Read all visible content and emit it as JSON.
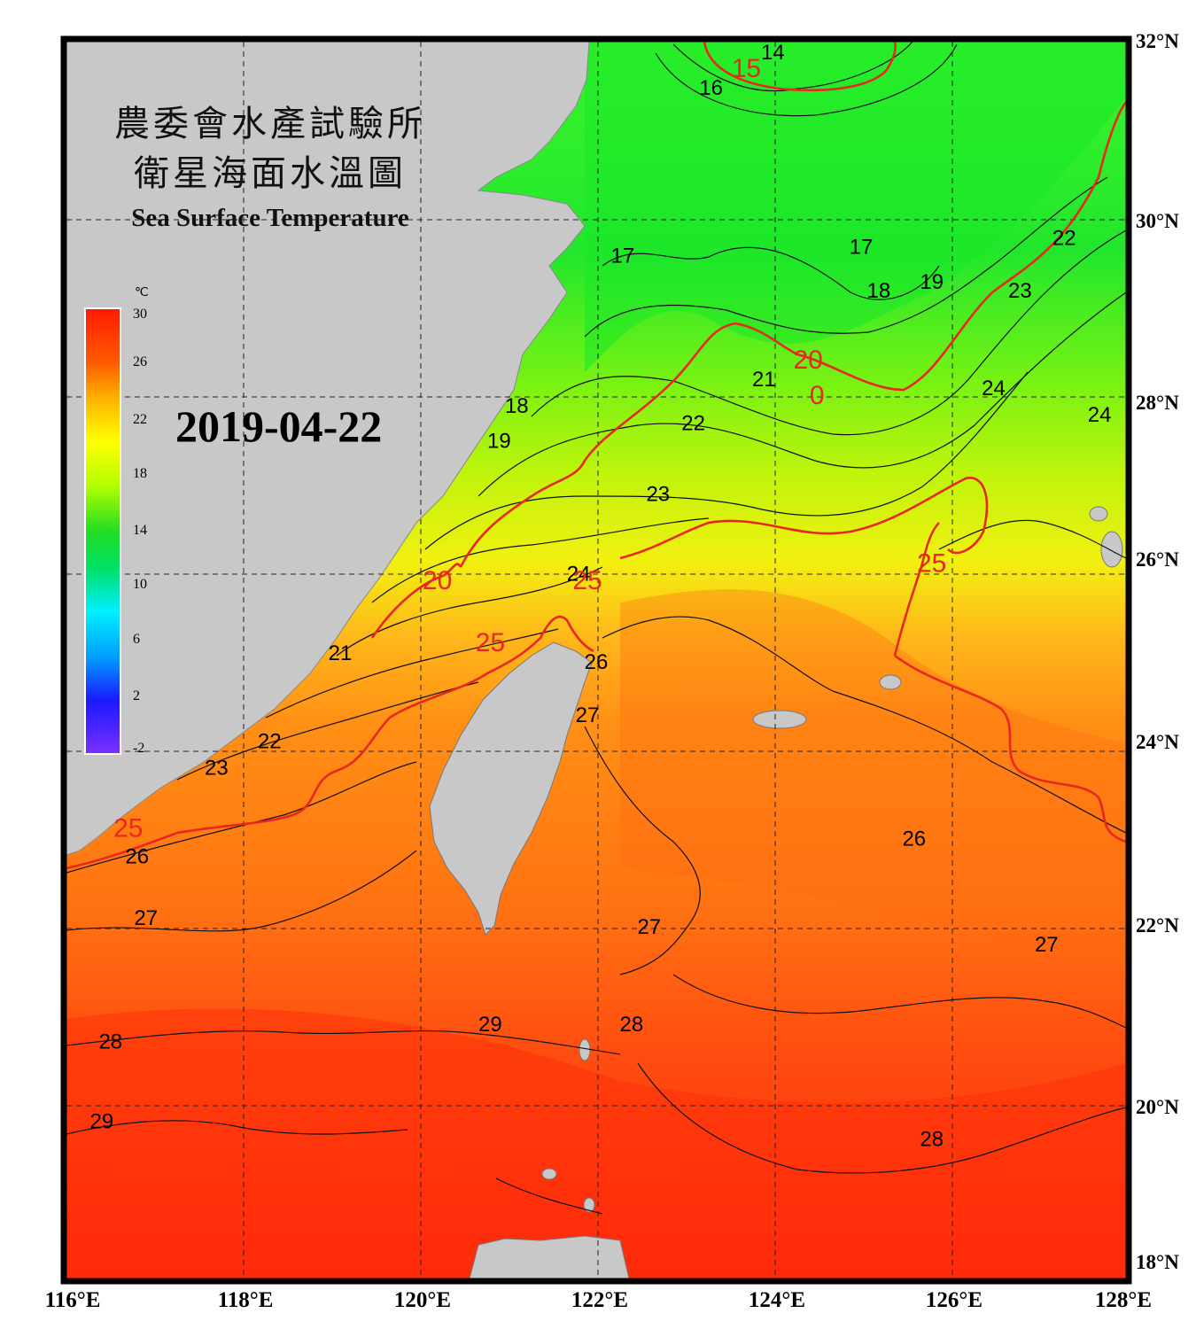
{
  "title": {
    "line1": "農委會水產試驗所",
    "line2": "衛星海面水溫圖",
    "english": "Sea Surface Temperature"
  },
  "date": "2019-04-22",
  "colorbar": {
    "unit": "℃",
    "ticks": [
      "30",
      "26",
      "22",
      "18",
      "14",
      "10",
      "6",
      "2",
      "-2"
    ],
    "range": [
      -2,
      30
    ],
    "colors": [
      "#7b2fff",
      "#1a1aff",
      "#00a0ff",
      "#00f0ff",
      "#00e060",
      "#22dd22",
      "#b0ff00",
      "#ffff00",
      "#ffb000",
      "#ff5a00",
      "#ff1a00"
    ]
  },
  "axes": {
    "lon_labels": [
      "116°E",
      "118°E",
      "120°E",
      "122°E",
      "124°E",
      "126°E",
      "128°E"
    ],
    "lat_labels": [
      "32°N",
      "30°N",
      "28°N",
      "26°N",
      "24°N",
      "22°N",
      "20°N",
      "18°N"
    ],
    "lon_range": [
      116,
      128
    ],
    "lat_range": [
      18,
      32
    ]
  },
  "contour_labels": [
    {
      "text": "14",
      "lon": 124.0,
      "lat": 31.8,
      "color": "#000000"
    },
    {
      "text": "15",
      "lon": 123.7,
      "lat": 31.6,
      "color": "#e8281e"
    },
    {
      "text": "16",
      "lon": 123.3,
      "lat": 31.4,
      "color": "#000000"
    },
    {
      "text": "17",
      "lon": 122.3,
      "lat": 29.5,
      "color": "#000000"
    },
    {
      "text": "17",
      "lon": 125.0,
      "lat": 29.6,
      "color": "#000000"
    },
    {
      "text": "18",
      "lon": 125.2,
      "lat": 29.1,
      "color": "#000000"
    },
    {
      "text": "18",
      "lon": 121.1,
      "lat": 27.8,
      "color": "#000000"
    },
    {
      "text": "19",
      "lon": 125.8,
      "lat": 29.2,
      "color": "#000000"
    },
    {
      "text": "19",
      "lon": 120.9,
      "lat": 27.4,
      "color": "#000000"
    },
    {
      "text": "20",
      "lon": 124.4,
      "lat": 28.3,
      "color": "#e8281e"
    },
    {
      "text": "0",
      "lon": 124.5,
      "lat": 27.9,
      "color": "#e8281e"
    },
    {
      "text": "20",
      "lon": 120.2,
      "lat": 25.8,
      "color": "#e8281e"
    },
    {
      "text": "21",
      "lon": 123.9,
      "lat": 28.1,
      "color": "#000000"
    },
    {
      "text": "21",
      "lon": 119.1,
      "lat": 25.0,
      "color": "#000000"
    },
    {
      "text": "22",
      "lon": 123.1,
      "lat": 27.6,
      "color": "#000000"
    },
    {
      "text": "22",
      "lon": 127.3,
      "lat": 29.7,
      "color": "#000000"
    },
    {
      "text": "22",
      "lon": 118.3,
      "lat": 24.0,
      "color": "#000000"
    },
    {
      "text": "23",
      "lon": 126.8,
      "lat": 29.1,
      "color": "#000000"
    },
    {
      "text": "23",
      "lon": 122.7,
      "lat": 26.8,
      "color": "#000000"
    },
    {
      "text": "23",
      "lon": 117.7,
      "lat": 23.7,
      "color": "#000000"
    },
    {
      "text": "24",
      "lon": 126.5,
      "lat": 28.0,
      "color": "#000000"
    },
    {
      "text": "24",
      "lon": 127.7,
      "lat": 27.7,
      "color": "#000000"
    },
    {
      "text": "24",
      "lon": 121.8,
      "lat": 25.9,
      "color": "#000000"
    },
    {
      "text": "25",
      "lon": 121.9,
      "lat": 25.8,
      "color": "#e8281e"
    },
    {
      "text": "25",
      "lon": 125.8,
      "lat": 26.0,
      "color": "#e8281e"
    },
    {
      "text": "25",
      "lon": 120.8,
      "lat": 25.1,
      "color": "#e8281e"
    },
    {
      "text": "25",
      "lon": 116.7,
      "lat": 23.0,
      "color": "#e8281e"
    },
    {
      "text": "26",
      "lon": 122.0,
      "lat": 24.9,
      "color": "#000000"
    },
    {
      "text": "26",
      "lon": 125.6,
      "lat": 22.9,
      "color": "#000000"
    },
    {
      "text": "26",
      "lon": 116.8,
      "lat": 22.7,
      "color": "#000000"
    },
    {
      "text": "27",
      "lon": 121.9,
      "lat": 24.3,
      "color": "#000000"
    },
    {
      "text": "27",
      "lon": 122.6,
      "lat": 21.9,
      "color": "#000000"
    },
    {
      "text": "27",
      "lon": 127.1,
      "lat": 21.7,
      "color": "#000000"
    },
    {
      "text": "27",
      "lon": 116.9,
      "lat": 22.0,
      "color": "#000000"
    },
    {
      "text": "28",
      "lon": 116.5,
      "lat": 20.6,
      "color": "#000000"
    },
    {
      "text": "28",
      "lon": 122.4,
      "lat": 20.8,
      "color": "#000000"
    },
    {
      "text": "28",
      "lon": 125.8,
      "lat": 19.5,
      "color": "#000000"
    },
    {
      "text": "29",
      "lon": 120.8,
      "lat": 20.8,
      "color": "#000000"
    },
    {
      "text": "29",
      "lon": 116.4,
      "lat": 19.7,
      "color": "#000000"
    }
  ]
}
